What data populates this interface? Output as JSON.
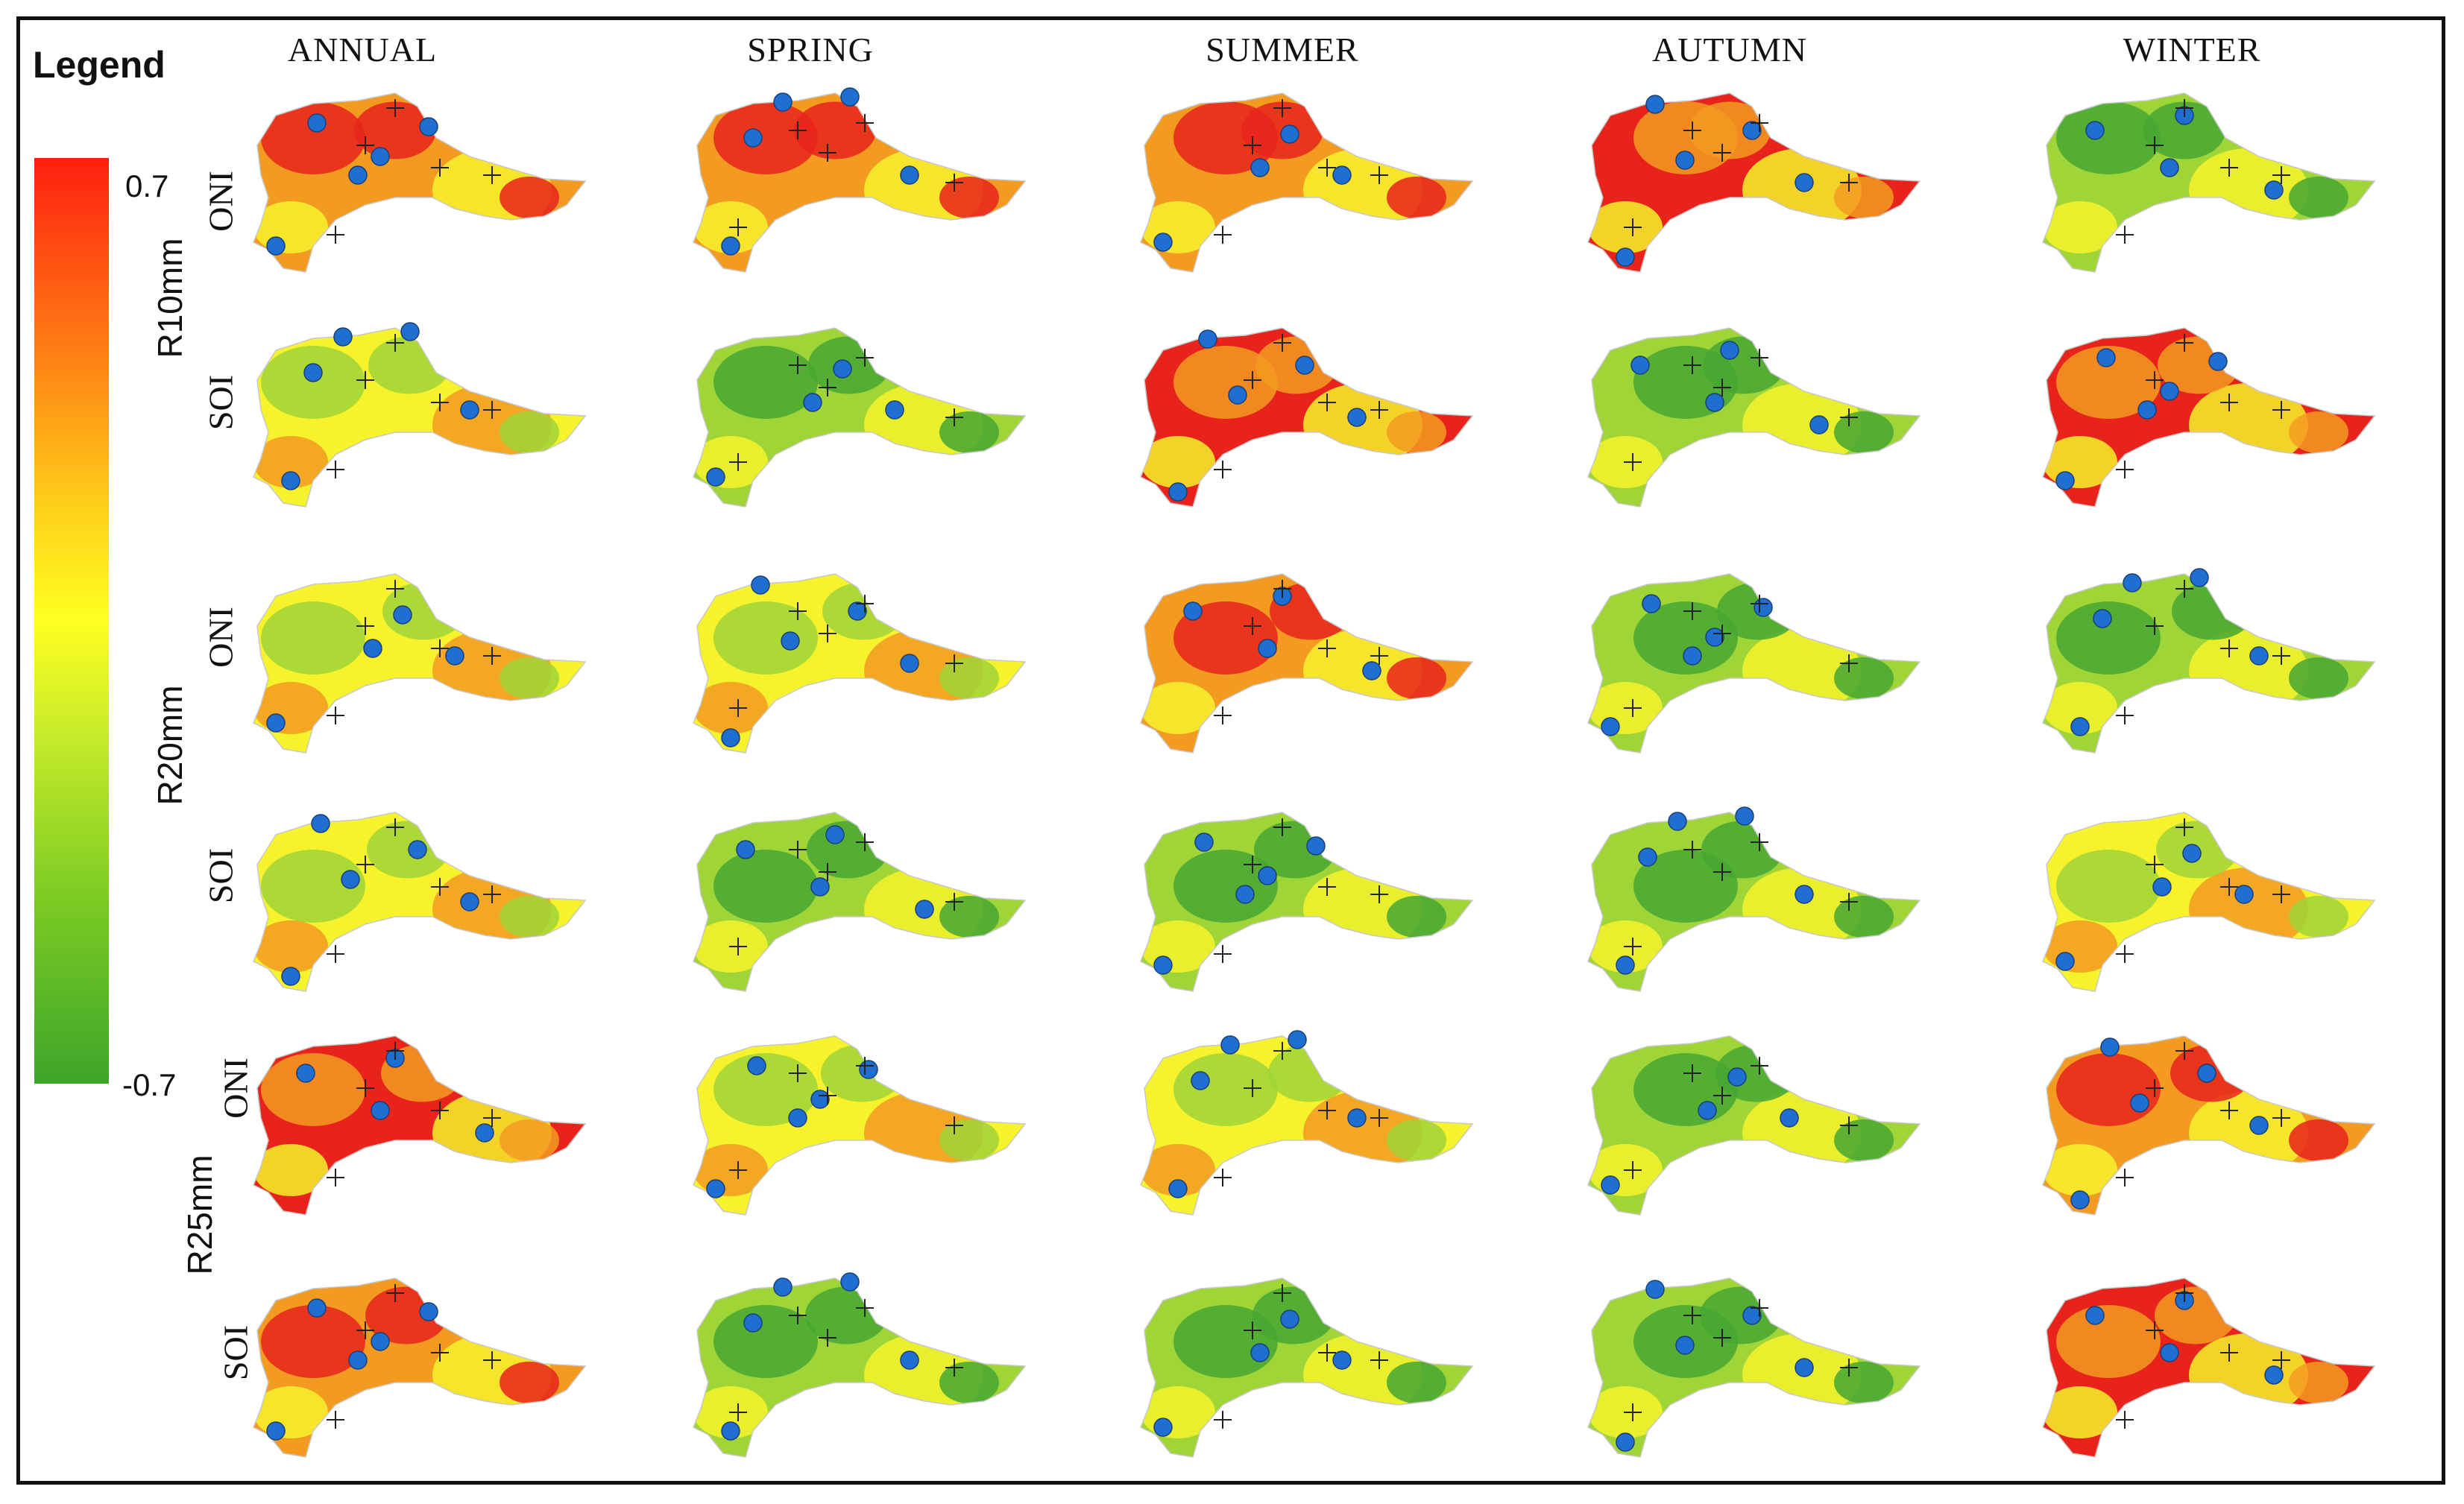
{
  "figure": {
    "legend_title": "Legend",
    "legend_max": "0.7",
    "legend_min": "-0.7",
    "colors": {
      "high": "#e8231c",
      "mid_high": "#f39a21",
      "mid": "#f6f22b",
      "mid_low": "#9fd537",
      "low": "#47a732",
      "station_dot": "#1f6fd1",
      "frame": "#111111"
    },
    "seasons": [
      "ANNUAL",
      "SPRING",
      "SUMMER",
      "AUTUMN",
      "WINTER"
    ],
    "row_groups": [
      "R10mm",
      "R20mm",
      "R25mm"
    ],
    "row_indices": [
      "ONI",
      "SOI",
      "ONI",
      "SOI",
      "ONI",
      "SOI"
    ]
  },
  "maps": [
    [
      "orange",
      "orange",
      "orange",
      "red",
      "green"
    ],
    [
      "yellow",
      "green",
      "red",
      "green",
      "red"
    ],
    [
      "yellow",
      "yellow",
      "orange",
      "green",
      "green"
    ],
    [
      "yellow",
      "green",
      "green",
      "green",
      "yellow"
    ],
    [
      "red",
      "yellow",
      "yellow",
      "green",
      "orange"
    ],
    [
      "orange",
      "green",
      "green",
      "green",
      "red"
    ]
  ]
}
